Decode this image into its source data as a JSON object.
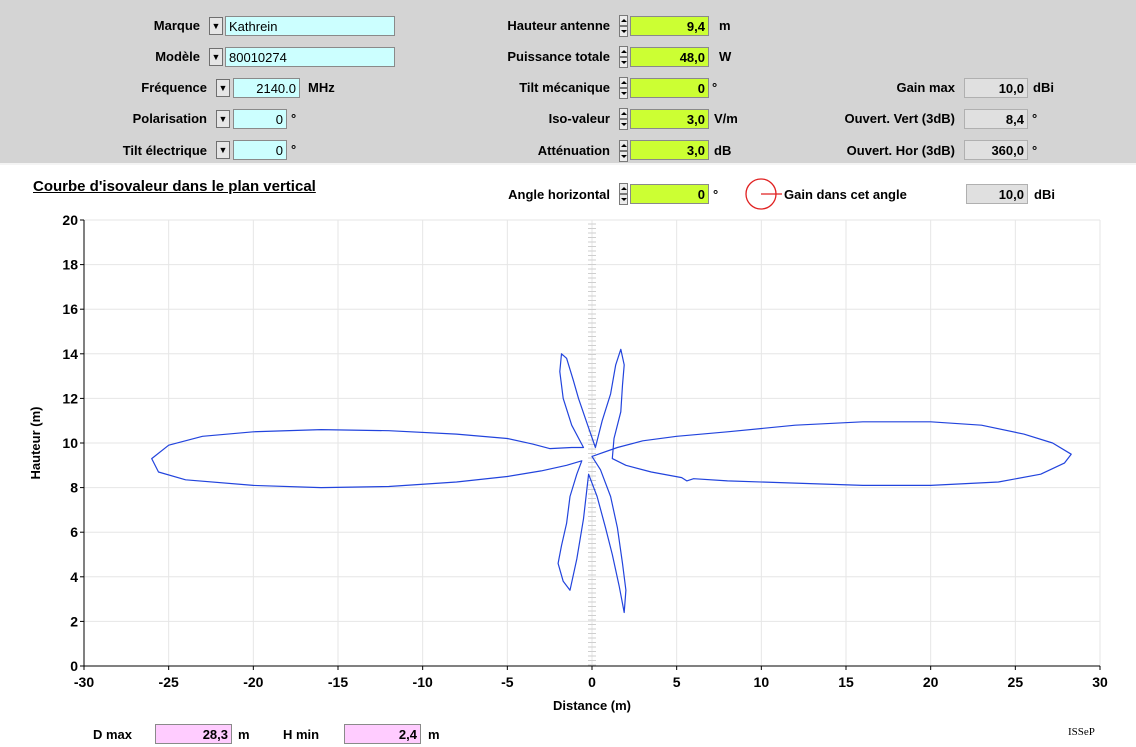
{
  "params": {
    "marque": {
      "label": "Marque",
      "value": "Kathrein"
    },
    "modele": {
      "label": "Modèle",
      "value": "80010274"
    },
    "frequence": {
      "label": "Fréquence",
      "value": "2140.0",
      "unit": "MHz"
    },
    "polarisation": {
      "label": "Polarisation",
      "value": "0",
      "unit": "°"
    },
    "tilt_electrique": {
      "label": "Tilt électrique",
      "value": "0",
      "unit": "°"
    }
  },
  "settings": {
    "hauteur": {
      "label": "Hauteur antenne",
      "value": "9,4",
      "unit": "m"
    },
    "puissance": {
      "label": "Puissance totale",
      "value": "48,0",
      "unit": "W"
    },
    "tilt_mecanique": {
      "label": "Tilt mécanique",
      "value": "0",
      "unit": "°"
    },
    "iso_valeur": {
      "label": "Iso-valeur",
      "value": "3,0",
      "unit": "V/m"
    },
    "attenuation": {
      "label": "Atténuation",
      "value": "3,0",
      "unit": "dB"
    }
  },
  "readouts": {
    "gain_max": {
      "label": "Gain max",
      "value": "10,0",
      "unit": "dBi"
    },
    "ouvert_vert": {
      "label": "Ouvert. Vert (3dB)",
      "value": "8,4",
      "unit": "°"
    },
    "ouvert_hor": {
      "label": "Ouvert. Hor (3dB)",
      "value": "360,0",
      "unit": "°"
    }
  },
  "plot_header": {
    "title": "Courbe d'isovaleur dans le plan vertical",
    "angle_label": "Angle horizontal",
    "angle_value": "0",
    "angle_unit": "°",
    "gain_label": "Gain dans cet angle",
    "gain_value": "10,0",
    "gain_unit": "dBi"
  },
  "footer": {
    "dmax_label": "D max",
    "dmax_value": "28,3",
    "dmax_unit": "m",
    "hmin_label": "H min",
    "hmin_value": "2,4",
    "hmin_unit": "m",
    "logo": "ISSeP"
  },
  "colors": {
    "curve": "#2244dd",
    "compass": "#e02020",
    "panel": "#d4d4d4"
  },
  "chart_data": {
    "type": "line",
    "xlabel": "Distance (m)",
    "ylabel": "Hauteur (m)",
    "xlim": [
      -30,
      30
    ],
    "ylim": [
      0,
      20
    ],
    "xticks": [
      -30,
      -25,
      -20,
      -15,
      -10,
      -5,
      0,
      5,
      10,
      15,
      20,
      25,
      30
    ],
    "yticks": [
      0,
      2,
      4,
      6,
      8,
      10,
      12,
      14,
      16,
      18,
      20
    ],
    "grid": true,
    "series": [
      {
        "points": [
          [
            0,
            9.4
          ],
          [
            1.5,
            9.8
          ],
          [
            3,
            10.1
          ],
          [
            5,
            10.3
          ],
          [
            8,
            10.5
          ],
          [
            12,
            10.8
          ],
          [
            16,
            10.95
          ],
          [
            20,
            10.95
          ],
          [
            23,
            10.8
          ],
          [
            25.5,
            10.4
          ],
          [
            27.2,
            10.0
          ],
          [
            28.3,
            9.5
          ],
          [
            27.9,
            9.1
          ],
          [
            26.5,
            8.6
          ],
          [
            24,
            8.25
          ],
          [
            20,
            8.1
          ],
          [
            16,
            8.1
          ],
          [
            12,
            8.2
          ],
          [
            8,
            8.3
          ],
          [
            6,
            8.4
          ],
          [
            5.6,
            8.3
          ],
          [
            5.3,
            8.45
          ],
          [
            3.5,
            8.7
          ],
          [
            2,
            9.0
          ],
          [
            1.2,
            9.3
          ],
          [
            1.3,
            10.2
          ],
          [
            1.7,
            11.4
          ],
          [
            1.8,
            12.6
          ],
          [
            1.9,
            13.5
          ],
          [
            1.7,
            14.2
          ],
          [
            1.4,
            13.5
          ],
          [
            1.1,
            12.2
          ],
          [
            0.6,
            11.0
          ],
          [
            0.2,
            9.8
          ],
          [
            -0.3,
            10.9
          ],
          [
            -0.8,
            12.0
          ],
          [
            -1.1,
            12.8
          ],
          [
            -1.5,
            13.8
          ],
          [
            -1.8,
            14.0
          ],
          [
            -1.9,
            13.2
          ],
          [
            -1.7,
            12.0
          ],
          [
            -1.2,
            10.8
          ],
          [
            -0.5,
            9.8
          ],
          [
            -1.2,
            9.8
          ],
          [
            -2.5,
            9.75
          ],
          [
            -3.5,
            9.95
          ],
          [
            -5,
            10.2
          ],
          [
            -8,
            10.4
          ],
          [
            -12,
            10.55
          ],
          [
            -16,
            10.6
          ],
          [
            -20,
            10.5
          ],
          [
            -23,
            10.3
          ],
          [
            -25,
            9.9
          ],
          [
            -26,
            9.3
          ],
          [
            -25.6,
            8.7
          ],
          [
            -24,
            8.35
          ],
          [
            -20,
            8.1
          ],
          [
            -16,
            8.0
          ],
          [
            -12,
            8.05
          ],
          [
            -8,
            8.25
          ],
          [
            -5,
            8.5
          ],
          [
            -3,
            8.75
          ],
          [
            -1.5,
            9.0
          ],
          [
            -0.6,
            9.2
          ],
          [
            -0.9,
            8.6
          ],
          [
            -1.3,
            7.6
          ],
          [
            -1.5,
            6.4
          ],
          [
            -1.8,
            5.4
          ],
          [
            -2.0,
            4.6
          ],
          [
            -1.7,
            3.8
          ],
          [
            -1.3,
            3.4
          ],
          [
            -0.9,
            4.8
          ],
          [
            -0.5,
            6.6
          ],
          [
            -0.2,
            8.6
          ],
          [
            0.3,
            7.6
          ],
          [
            0.8,
            6.2
          ],
          [
            1.2,
            5.0
          ],
          [
            1.6,
            3.6
          ],
          [
            1.9,
            2.4
          ],
          [
            2.0,
            3.4
          ],
          [
            1.8,
            4.6
          ],
          [
            1.5,
            6.2
          ],
          [
            1.1,
            7.6
          ],
          [
            0.5,
            8.8
          ],
          [
            0,
            9.4
          ]
        ]
      }
    ]
  }
}
